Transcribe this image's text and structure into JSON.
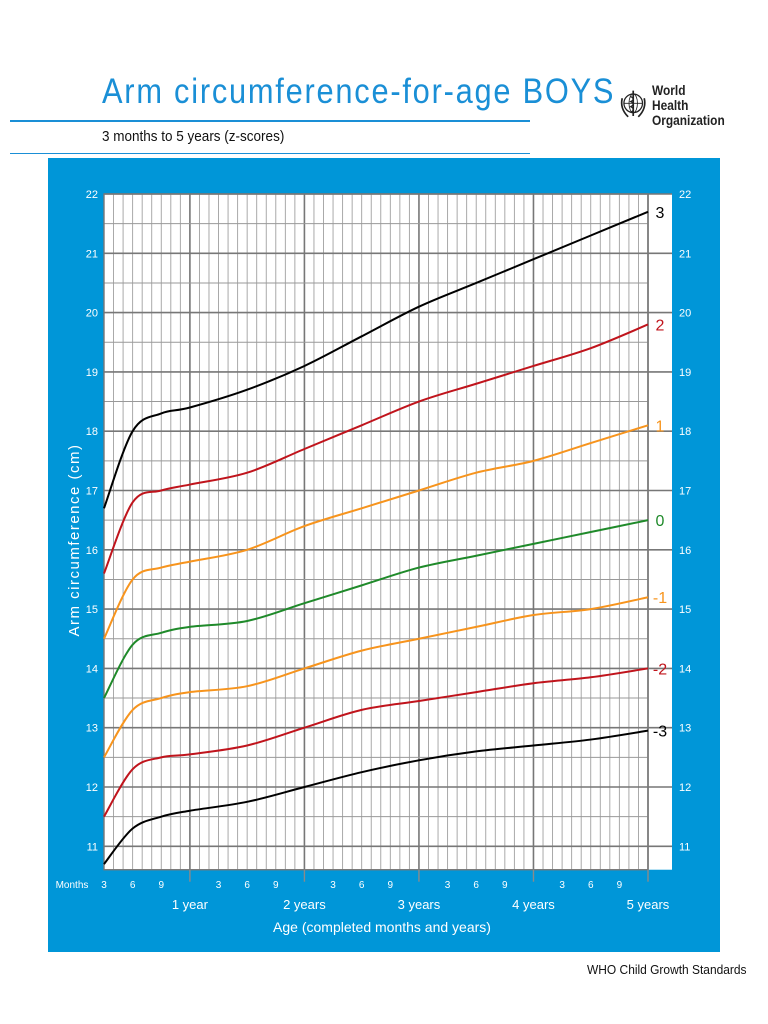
{
  "header": {
    "title": "Arm circumference-for-age  BOYS",
    "subtitle": "3 months to 5 years (z-scores)",
    "logo_line1": "World Health",
    "logo_line2": "Organization",
    "logo_icon": "who-emblem-icon"
  },
  "footer": {
    "text": "WHO Child Growth Standards"
  },
  "colors": {
    "panel_bg": "#0096d8",
    "title": "#1a8fd6",
    "z3": "#000000",
    "z2": "#c0141c",
    "z1": "#f7941d",
    "z0": "#1f8a2a"
  },
  "axes": {
    "ylabel": "Arm circumference (cm)",
    "xlabel": "Age (completed months and years)",
    "months_label": "Months",
    "y_ticks": [
      "22",
      "21",
      "20",
      "19",
      "18",
      "17",
      "16",
      "15",
      "14",
      "13",
      "12",
      "11"
    ],
    "month_ticks": [
      "3",
      "6",
      "9",
      "3",
      "6",
      "9",
      "3",
      "6",
      "9",
      "3",
      "6",
      "9",
      "3",
      "6",
      "9"
    ],
    "year_labels": [
      "1 year",
      "2 years",
      "3 years",
      "4 years",
      "5 years"
    ]
  },
  "chart_data": {
    "type": "line",
    "title": "Arm circumference-for-age BOYS",
    "subtitle": "3 months to 5 years (z-scores)",
    "xlabel": "Age (completed months and years)",
    "ylabel": "Arm circumference (cm)",
    "xlim": [
      3,
      60
    ],
    "ylim": [
      10.6,
      22
    ],
    "grid": true,
    "x_months": [
      3,
      6,
      9,
      12,
      18,
      24,
      30,
      36,
      42,
      48,
      54,
      60
    ],
    "series": [
      {
        "name": "3",
        "color": "#000000",
        "values": [
          16.7,
          18.0,
          18.3,
          18.4,
          18.7,
          19.1,
          19.6,
          20.1,
          20.5,
          20.9,
          21.3,
          21.7
        ]
      },
      {
        "name": "2",
        "color": "#c0141c",
        "values": [
          15.6,
          16.8,
          17.0,
          17.1,
          17.3,
          17.7,
          18.1,
          18.5,
          18.8,
          19.1,
          19.4,
          19.8
        ]
      },
      {
        "name": "1",
        "color": "#f7941d",
        "values": [
          14.5,
          15.5,
          15.7,
          15.8,
          16.0,
          16.4,
          16.7,
          17.0,
          17.3,
          17.5,
          17.8,
          18.1
        ]
      },
      {
        "name": "0",
        "color": "#1f8a2a",
        "values": [
          13.5,
          14.4,
          14.6,
          14.7,
          14.8,
          15.1,
          15.4,
          15.7,
          15.9,
          16.1,
          16.3,
          16.5
        ]
      },
      {
        "name": "-1",
        "color": "#f7941d",
        "values": [
          12.5,
          13.3,
          13.5,
          13.6,
          13.7,
          14.0,
          14.3,
          14.5,
          14.7,
          14.9,
          15.0,
          15.2
        ]
      },
      {
        "name": "-2",
        "color": "#c0141c",
        "values": [
          11.5,
          12.3,
          12.5,
          12.55,
          12.7,
          13.0,
          13.3,
          13.45,
          13.6,
          13.75,
          13.85,
          14.0
        ]
      },
      {
        "name": "-3",
        "color": "#000000",
        "values": [
          10.7,
          11.3,
          11.5,
          11.6,
          11.75,
          12.0,
          12.25,
          12.45,
          12.6,
          12.7,
          12.8,
          12.95
        ]
      }
    ]
  }
}
